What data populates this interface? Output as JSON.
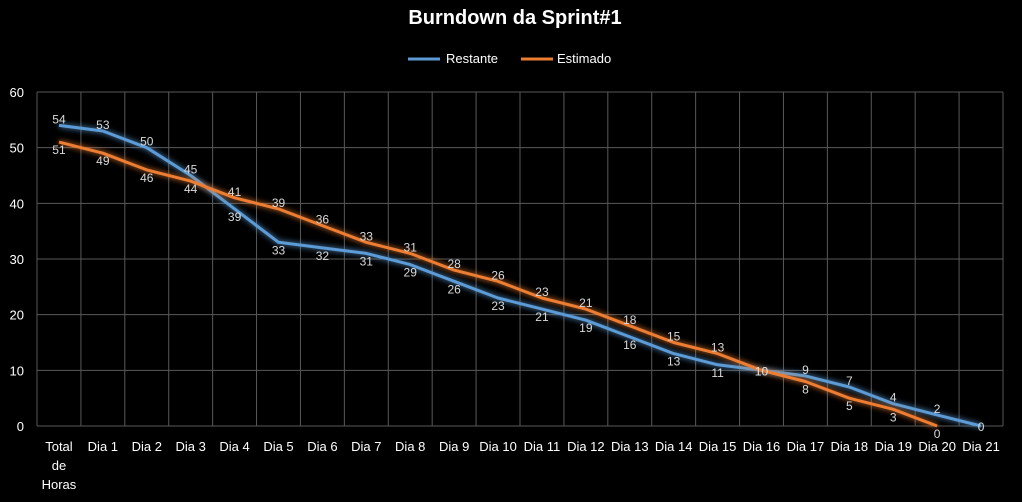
{
  "chart_data": {
    "type": "line",
    "title": "Burndown da Sprint#1",
    "categories": [
      [
        "Total",
        "de",
        "Horas"
      ],
      [
        "Dia 1"
      ],
      [
        "Dia 2"
      ],
      [
        "Dia 3"
      ],
      [
        "Dia 4"
      ],
      [
        "Dia 5"
      ],
      [
        "Dia 6"
      ],
      [
        "Dia 7"
      ],
      [
        "Dia 8"
      ],
      [
        "Dia 9"
      ],
      [
        "Dia 10"
      ],
      [
        "Dia 11"
      ],
      [
        "Dia 12"
      ],
      [
        "Dia 13"
      ],
      [
        "Dia 14"
      ],
      [
        "Dia 15"
      ],
      [
        "Dia 16"
      ],
      [
        "Dia 17"
      ],
      [
        "Dia 18"
      ],
      [
        "Dia 19"
      ],
      [
        "Dia 20"
      ],
      [
        "Dia 21"
      ]
    ],
    "series": [
      {
        "name": "Restante",
        "color": "#5B9BD5",
        "values": [
          54,
          53,
          50,
          45,
          39,
          33,
          32,
          31,
          29,
          26,
          23,
          21,
          19,
          16,
          13,
          11,
          10,
          9,
          7,
          4,
          2,
          0
        ]
      },
      {
        "name": "Estimado",
        "color": "#ED7D31",
        "values": [
          51,
          49,
          46,
          44,
          41,
          39,
          36,
          33,
          31,
          28,
          26,
          23,
          21,
          18,
          15,
          13,
          10,
          8,
          5,
          3,
          0,
          null
        ]
      }
    ],
    "ylim": [
      0,
      60
    ],
    "yticks": [
      0,
      10,
      20,
      30,
      40,
      50,
      60
    ],
    "grid": true,
    "legend": "top",
    "label_color": "#D9D9D9"
  }
}
